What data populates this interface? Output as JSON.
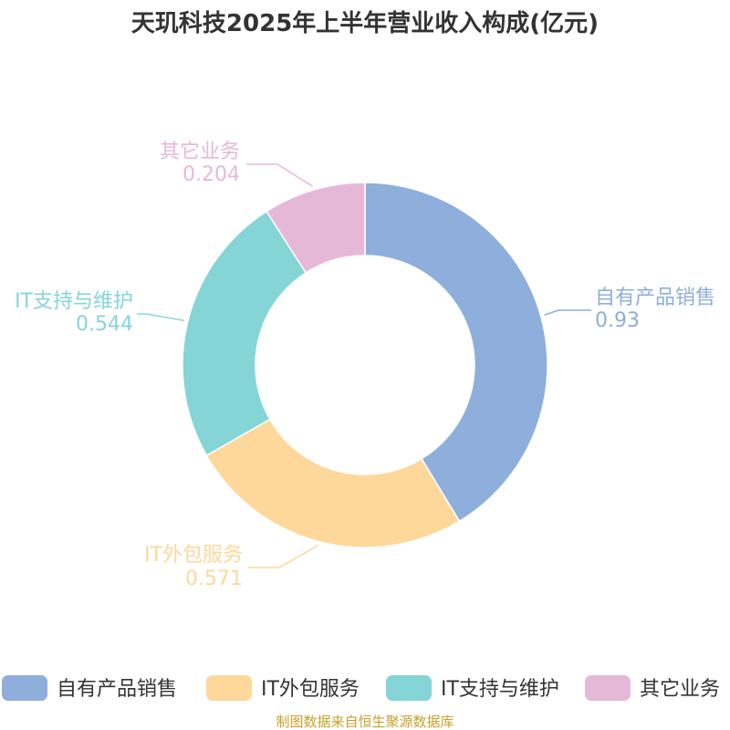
{
  "chart_data": {
    "type": "pie",
    "title": "天玑科技2025年上半年营业收入构成(亿元)",
    "series": [
      {
        "name": "自有产品销售",
        "value": 0.93,
        "value_label": "0.93",
        "color": "#8eaedb"
      },
      {
        "name": "IT外包服务",
        "value": 0.571,
        "value_label": "0.571",
        "color": "#fdd89a"
      },
      {
        "name": "IT支持与维护",
        "value": 0.544,
        "value_label": "0.544",
        "color": "#85d5d7"
      },
      {
        "name": "其它业务",
        "value": 0.204,
        "value_label": "0.204",
        "color": "#e6b8d8"
      }
    ],
    "legend_position": "bottom"
  },
  "source": "制图数据来自恒生聚源数据库"
}
